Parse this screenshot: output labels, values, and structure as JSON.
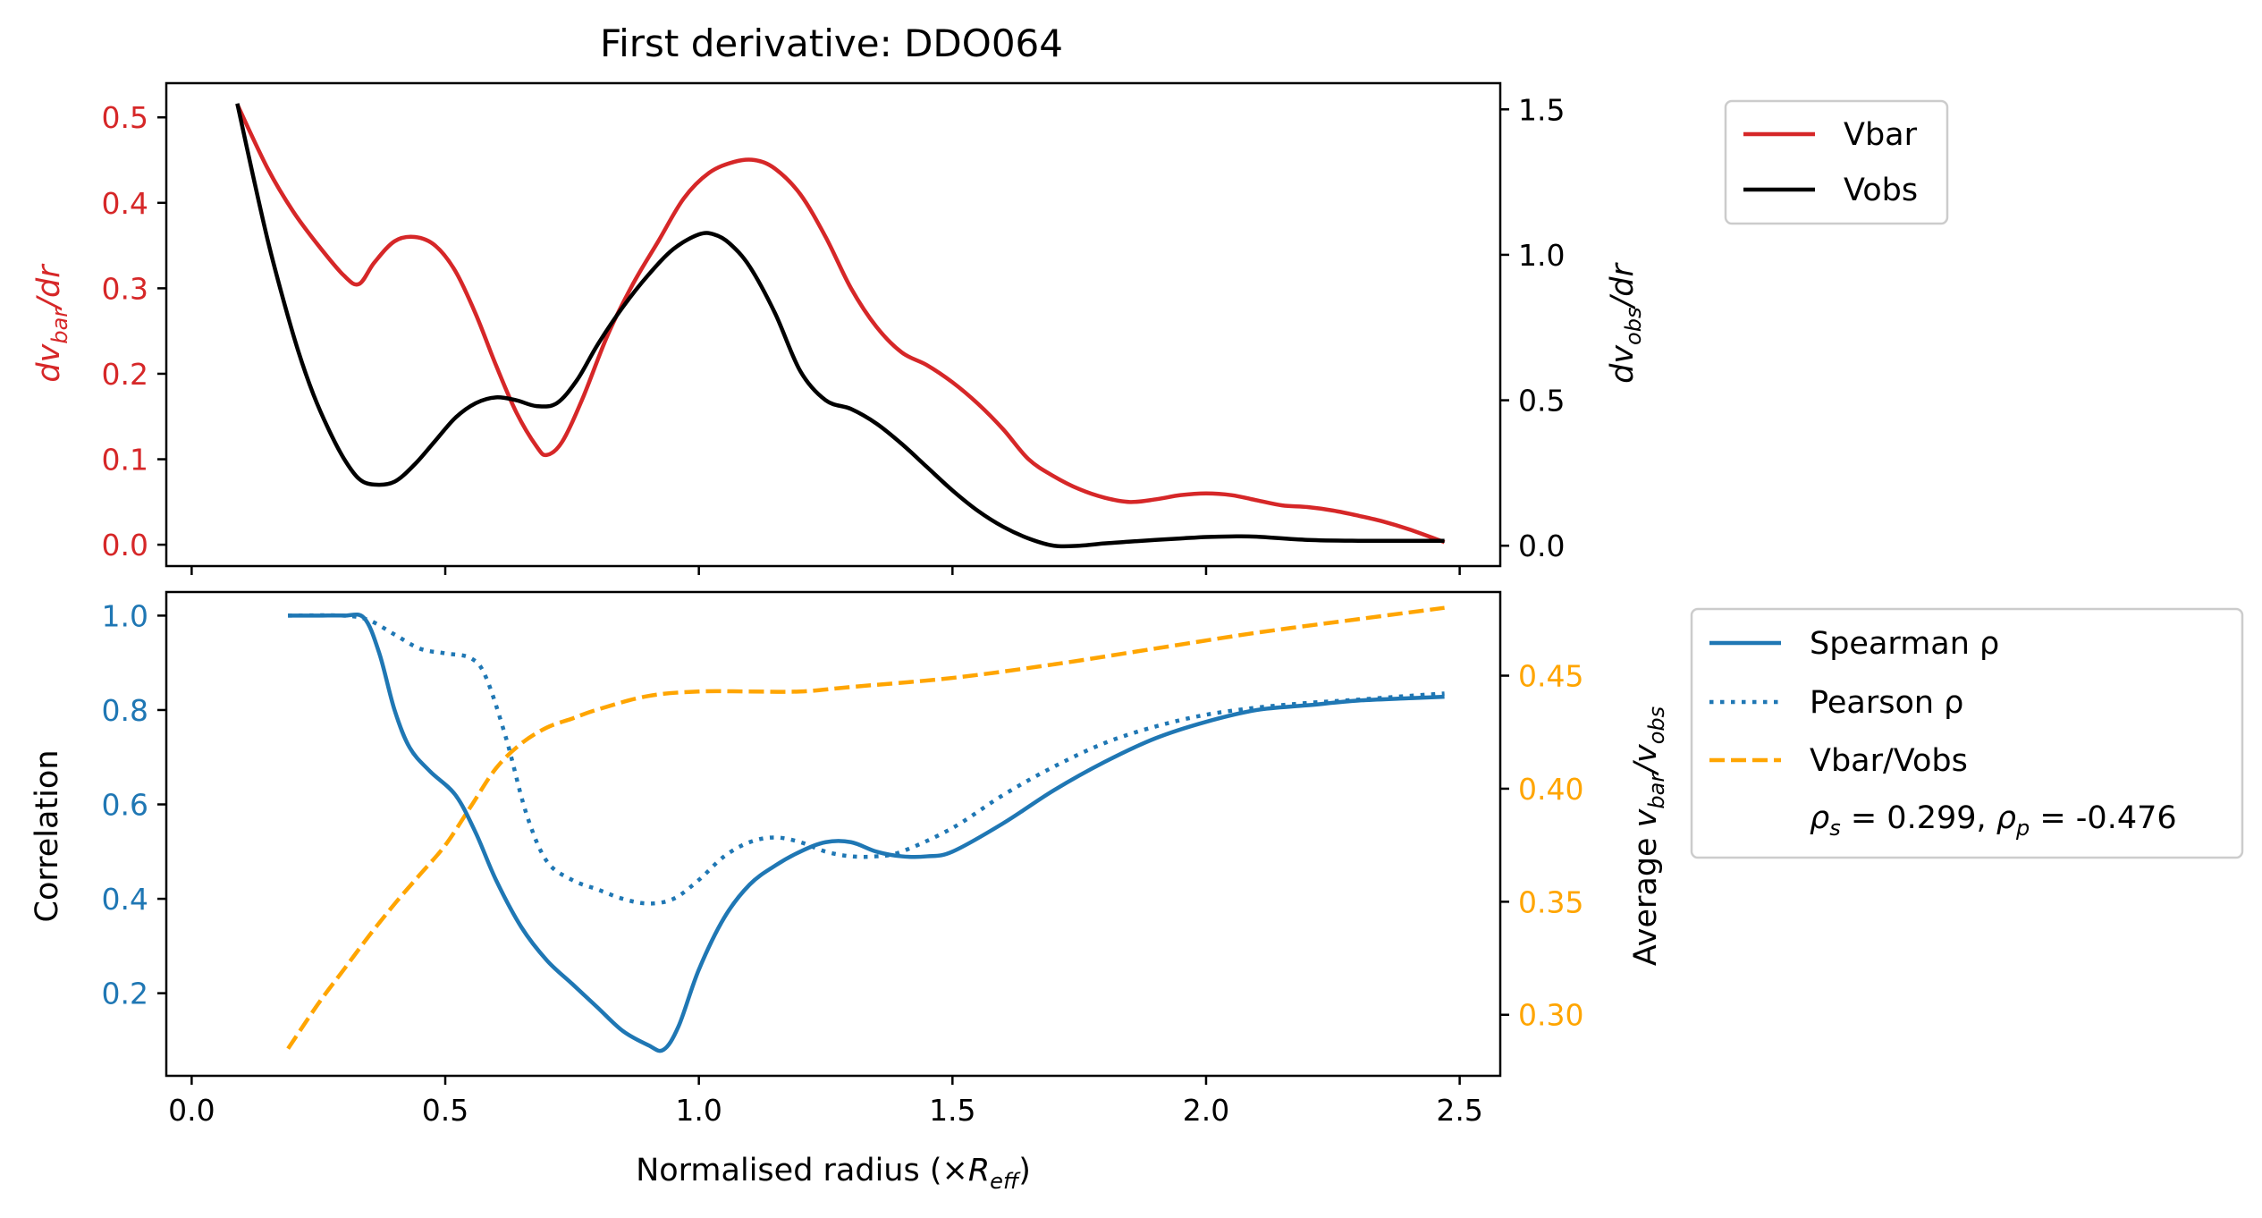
{
  "colors": {
    "vbar": "#d62728",
    "vobs": "#000000",
    "spearman": "#1f77b4",
    "pearson": "#1f77b4",
    "ratio": "#ffa500"
  },
  "chart_data": [
    {
      "type": "line",
      "title": "First derivative: DDO064",
      "left_ylabel_parts": [
        "dv",
        "bar",
        "/dr"
      ],
      "right_ylabel_parts": [
        "dv",
        "obs",
        "/dr"
      ],
      "xlim": [
        -0.05,
        2.58
      ],
      "ylim_left": [
        -0.025,
        0.54
      ],
      "ylim_right": [
        -0.07,
        1.59
      ],
      "xticks": [
        0.0,
        0.5,
        1.0,
        1.5,
        2.0,
        2.5
      ],
      "left_ticks": [
        0.0,
        0.1,
        0.2,
        0.3,
        0.4,
        0.5
      ],
      "left_tick_labels": [
        "0.0",
        "0.1",
        "0.2",
        "0.3",
        "0.4",
        "0.5"
      ],
      "right_ticks": [
        0.0,
        0.5,
        1.0,
        1.5
      ],
      "right_tick_labels": [
        "0.0",
        "0.5",
        "1.0",
        "1.5"
      ],
      "series": [
        {
          "name": "Vbar",
          "axis": "left",
          "style": "solid",
          "x": [
            0.09,
            0.15,
            0.2,
            0.25,
            0.3,
            0.33,
            0.36,
            0.4,
            0.44,
            0.48,
            0.52,
            0.56,
            0.6,
            0.64,
            0.68,
            0.7,
            0.73,
            0.77,
            0.82,
            0.87,
            0.92,
            0.97,
            1.02,
            1.07,
            1.11,
            1.15,
            1.2,
            1.25,
            1.3,
            1.35,
            1.4,
            1.45,
            1.5,
            1.55,
            1.6,
            1.65,
            1.7,
            1.75,
            1.8,
            1.85,
            1.9,
            1.95,
            2.0,
            2.05,
            2.1,
            2.15,
            2.2,
            2.25,
            2.3,
            2.35,
            2.4,
            2.47
          ],
          "y": [
            0.515,
            0.44,
            0.39,
            0.35,
            0.315,
            0.305,
            0.33,
            0.355,
            0.36,
            0.35,
            0.32,
            0.27,
            0.21,
            0.155,
            0.115,
            0.105,
            0.12,
            0.17,
            0.245,
            0.305,
            0.355,
            0.405,
            0.435,
            0.448,
            0.45,
            0.44,
            0.41,
            0.36,
            0.3,
            0.255,
            0.225,
            0.21,
            0.19,
            0.165,
            0.135,
            0.1,
            0.08,
            0.065,
            0.055,
            0.05,
            0.053,
            0.058,
            0.06,
            0.058,
            0.052,
            0.046,
            0.044,
            0.04,
            0.034,
            0.027,
            0.018,
            0.003
          ]
        },
        {
          "name": "Vobs",
          "axis": "right",
          "style": "solid",
          "x": [
            0.09,
            0.12,
            0.15,
            0.18,
            0.21,
            0.24,
            0.27,
            0.3,
            0.33,
            0.36,
            0.4,
            0.44,
            0.48,
            0.52,
            0.56,
            0.6,
            0.64,
            0.68,
            0.72,
            0.76,
            0.8,
            0.85,
            0.9,
            0.95,
            1.0,
            1.03,
            1.06,
            1.1,
            1.15,
            1.2,
            1.25,
            1.3,
            1.35,
            1.4,
            1.45,
            1.5,
            1.55,
            1.6,
            1.65,
            1.7,
            1.75,
            1.8,
            1.85,
            1.9,
            1.95,
            2.0,
            2.05,
            2.1,
            2.2,
            2.3,
            2.4,
            2.47
          ],
          "y": [
            1.52,
            1.28,
            1.05,
            0.85,
            0.67,
            0.52,
            0.4,
            0.3,
            0.23,
            0.21,
            0.22,
            0.28,
            0.36,
            0.44,
            0.49,
            0.51,
            0.5,
            0.48,
            0.49,
            0.57,
            0.69,
            0.82,
            0.93,
            1.02,
            1.07,
            1.07,
            1.04,
            0.96,
            0.8,
            0.6,
            0.5,
            0.47,
            0.42,
            0.35,
            0.27,
            0.19,
            0.12,
            0.065,
            0.025,
            0.0,
            0.0,
            0.008,
            0.014,
            0.02,
            0.025,
            0.03,
            0.032,
            0.031,
            0.02,
            0.017,
            0.017,
            0.017
          ]
        }
      ]
    },
    {
      "type": "line",
      "left_ylabel": "Correlation",
      "right_ylabel_parts": [
        "Average ",
        "v",
        "bar",
        "/",
        "v",
        "obs"
      ],
      "xlabel_parts": [
        "Normalised radius (×",
        "R",
        "eff",
        ")"
      ],
      "xlim": [
        -0.05,
        2.58
      ],
      "ylim_left": [
        0.025,
        1.05
      ],
      "ylim_right": [
        0.273,
        0.487
      ],
      "xticks": [
        0.0,
        0.5,
        1.0,
        1.5,
        2.0,
        2.5
      ],
      "xtick_labels": [
        "0.0",
        "0.5",
        "1.0",
        "1.5",
        "2.0",
        "2.5"
      ],
      "left_ticks": [
        0.2,
        0.4,
        0.6,
        0.8,
        1.0
      ],
      "left_tick_labels": [
        "0.2",
        "0.4",
        "0.6",
        "0.8",
        "1.0"
      ],
      "right_ticks": [
        0.3,
        0.35,
        0.4,
        0.45
      ],
      "right_tick_labels": [
        "0.30",
        "0.35",
        "0.40",
        "0.45"
      ],
      "series": [
        {
          "name": "Spearman ρ",
          "axis": "left",
          "style": "solid",
          "x": [
            0.19,
            0.25,
            0.3,
            0.34,
            0.37,
            0.4,
            0.43,
            0.47,
            0.52,
            0.56,
            0.6,
            0.65,
            0.7,
            0.75,
            0.8,
            0.85,
            0.9,
            0.93,
            0.96,
            1.0,
            1.05,
            1.1,
            1.15,
            1.2,
            1.25,
            1.3,
            1.35,
            1.4,
            1.45,
            1.5,
            1.6,
            1.7,
            1.8,
            1.9,
            2.0,
            2.1,
            2.2,
            2.3,
            2.4,
            2.47
          ],
          "y": [
            1.0,
            1.0,
            1.0,
            0.995,
            0.92,
            0.8,
            0.72,
            0.67,
            0.62,
            0.54,
            0.44,
            0.34,
            0.27,
            0.22,
            0.17,
            0.12,
            0.09,
            0.08,
            0.13,
            0.25,
            0.36,
            0.43,
            0.47,
            0.5,
            0.52,
            0.52,
            0.5,
            0.49,
            0.49,
            0.5,
            0.56,
            0.63,
            0.69,
            0.74,
            0.775,
            0.8,
            0.81,
            0.82,
            0.825,
            0.828
          ]
        },
        {
          "name": "Pearson ρ",
          "axis": "left",
          "style": "dotted",
          "x": [
            0.19,
            0.3,
            0.35,
            0.4,
            0.45,
            0.5,
            0.55,
            0.58,
            0.62,
            0.66,
            0.7,
            0.75,
            0.8,
            0.85,
            0.9,
            0.95,
            1.0,
            1.05,
            1.1,
            1.15,
            1.2,
            1.25,
            1.3,
            1.35,
            1.4,
            1.5,
            1.6,
            1.7,
            1.8,
            1.9,
            2.0,
            2.1,
            2.2,
            2.3,
            2.4,
            2.47
          ],
          "y": [
            1.0,
            1.0,
            0.99,
            0.96,
            0.93,
            0.92,
            0.91,
            0.87,
            0.74,
            0.58,
            0.48,
            0.44,
            0.42,
            0.4,
            0.39,
            0.4,
            0.44,
            0.49,
            0.52,
            0.53,
            0.52,
            0.5,
            0.49,
            0.49,
            0.5,
            0.55,
            0.62,
            0.68,
            0.73,
            0.765,
            0.79,
            0.805,
            0.815,
            0.822,
            0.83,
            0.835
          ]
        },
        {
          "name": "Vbar/Vobs",
          "axis": "right",
          "style": "dashed",
          "x": [
            0.19,
            0.25,
            0.3,
            0.35,
            0.4,
            0.45,
            0.5,
            0.55,
            0.6,
            0.65,
            0.7,
            0.75,
            0.8,
            0.9,
            1.0,
            1.1,
            1.2,
            1.3,
            1.5,
            1.7,
            1.9,
            2.1,
            2.3,
            2.47
          ],
          "y": [
            0.285,
            0.305,
            0.32,
            0.335,
            0.349,
            0.362,
            0.375,
            0.392,
            0.409,
            0.42,
            0.427,
            0.431,
            0.435,
            0.441,
            0.443,
            0.443,
            0.443,
            0.445,
            0.449,
            0.455,
            0.462,
            0.469,
            0.475,
            0.48
          ]
        }
      ],
      "stats_parts": [
        "ρ",
        "s",
        " = 0.299, ",
        "ρ",
        "p",
        " = -0.476"
      ]
    }
  ]
}
